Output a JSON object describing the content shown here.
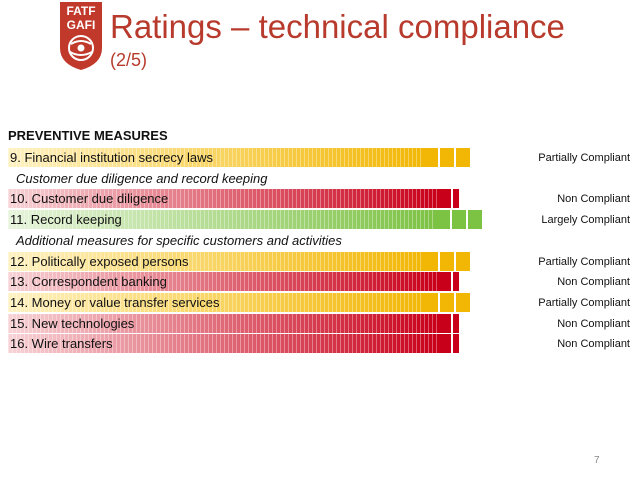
{
  "logo": {
    "line1": "FATF",
    "line2": "GAFI"
  },
  "title": "Ratings – technical compliance",
  "subtitle": "(2/5)",
  "section": "PREVENTIVE MEASURES",
  "colors": {
    "partial": "#f2b705",
    "partial_light": "#fff2c2",
    "non": "#c9001a",
    "non_light": "#f7d3d6",
    "largely": "#7cc243",
    "largely_light": "#e7f4dc",
    "title": "#b83a2c"
  },
  "rows": [
    {
      "type": "item",
      "label": "9. Financial institution secrecy laws",
      "rating": "Partially Compliant",
      "level": "partial"
    },
    {
      "type": "subhead",
      "label": "Customer due diligence and record keeping"
    },
    {
      "type": "item",
      "label": "10. Customer due diligence",
      "rating": "Non Compliant",
      "level": "non"
    },
    {
      "type": "item",
      "label": "11. Record keeping",
      "rating": "Largely Compliant",
      "level": "largely"
    },
    {
      "type": "subhead",
      "label": "Additional measures for specific customers and activities"
    },
    {
      "type": "item",
      "label": "12. Politically exposed persons",
      "rating": "Partially Compliant",
      "level": "partial"
    },
    {
      "type": "item",
      "label": "13. Correspondent banking",
      "rating": "Non Compliant",
      "level": "non"
    },
    {
      "type": "item",
      "label": "14. Money or value transfer services",
      "rating": "Partially Compliant",
      "level": "partial"
    },
    {
      "type": "item",
      "label": "15. New technologies",
      "rating": "Non Compliant",
      "level": "non"
    },
    {
      "type": "item",
      "label": "16. Wire transfers",
      "rating": "Non Compliant",
      "level": "non"
    }
  ],
  "page_number": "7"
}
